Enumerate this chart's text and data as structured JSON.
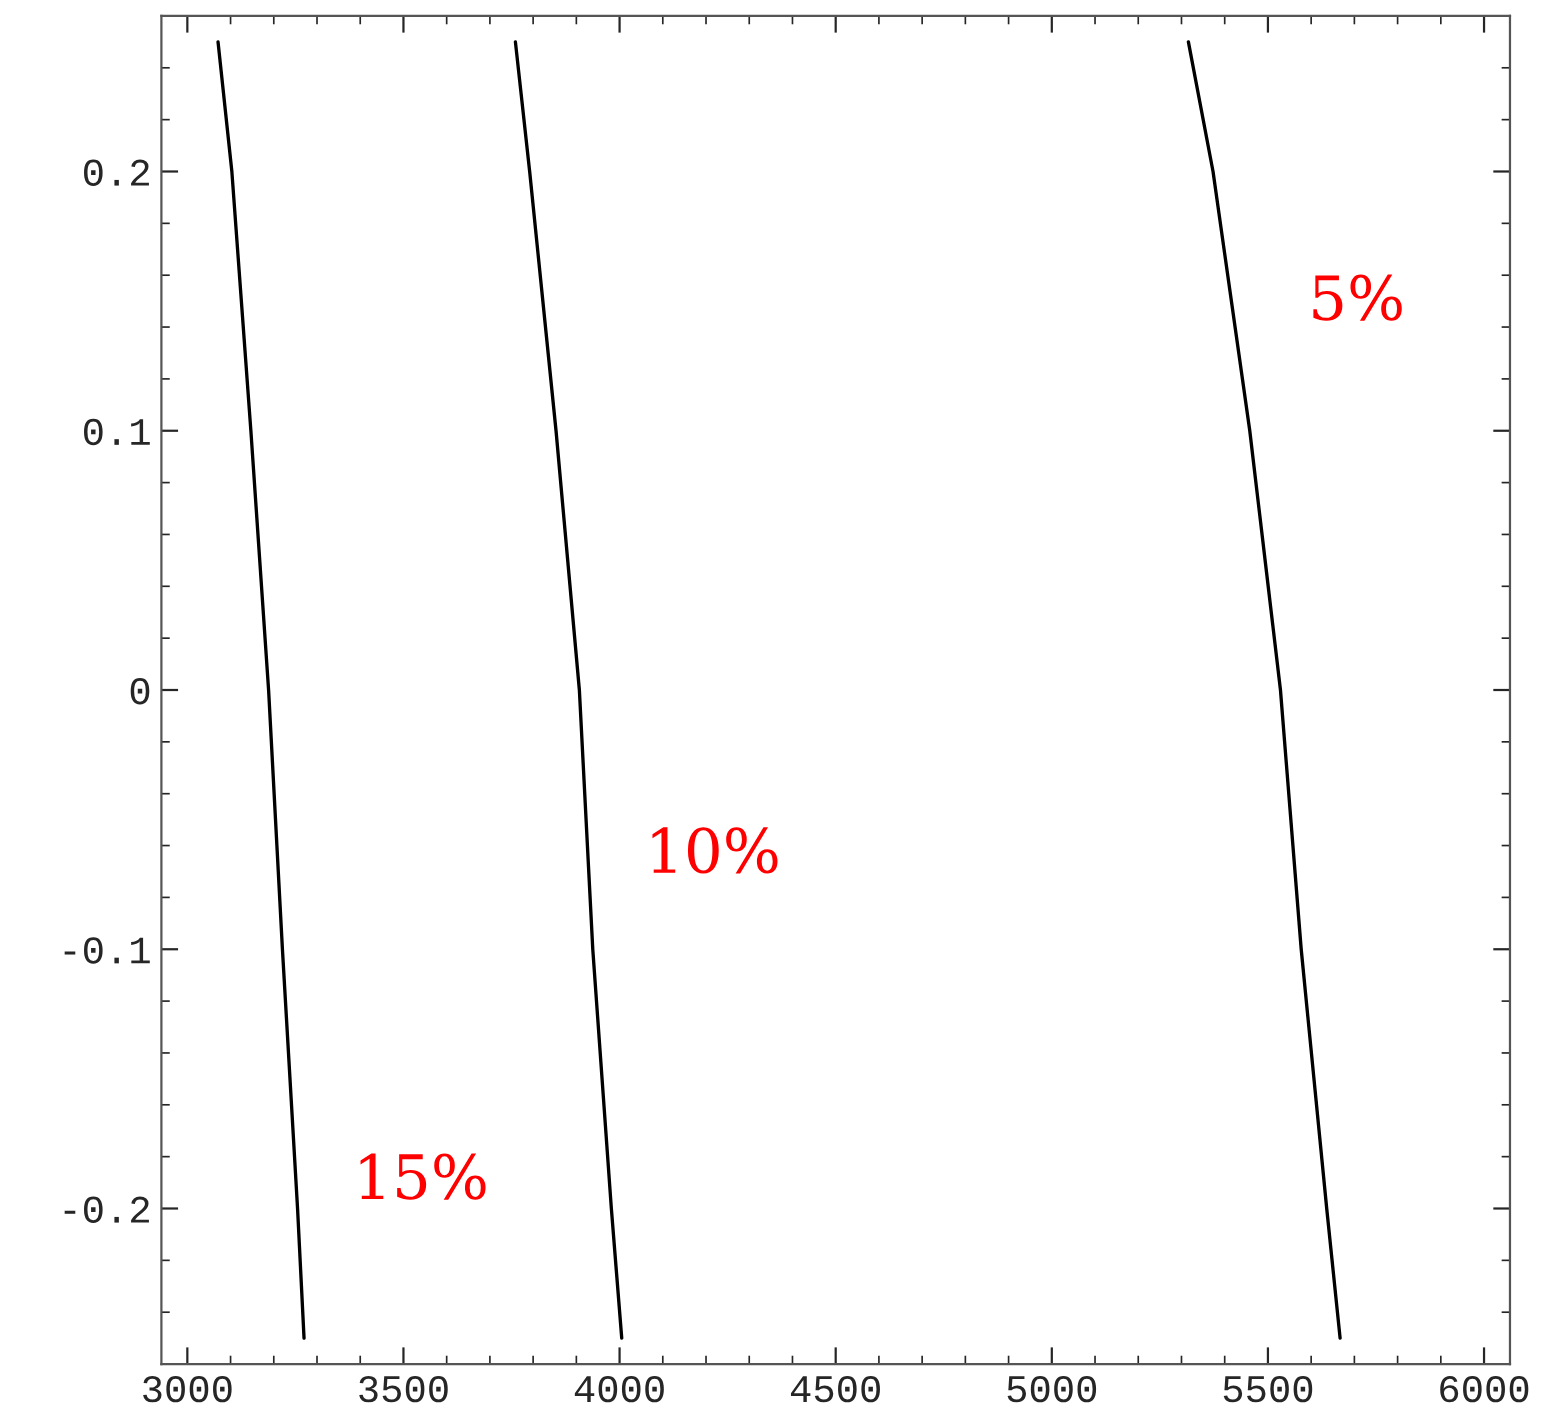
{
  "chart_data": {
    "type": "line",
    "series": [
      {
        "name": "15%",
        "color": "#000000",
        "x": [
          3071,
          3103,
          3147,
          3188,
          3220,
          3255,
          3270
        ],
        "values": [
          0.25,
          0.2,
          0.1,
          0,
          -0.1,
          -0.2,
          -0.25
        ]
      },
      {
        "name": "10%",
        "color": "#000000",
        "x": [
          3759,
          3792,
          3853,
          3907,
          3938,
          3981,
          4005
        ],
        "values": [
          0.25,
          0.2,
          0.1,
          0,
          -0.1,
          -0.2,
          -0.25
        ]
      },
      {
        "name": "5%",
        "color": "#000000",
        "x": [
          5316,
          5373,
          5458,
          5529,
          5577,
          5636,
          5667
        ],
        "values": [
          0.25,
          0.2,
          0.1,
          0,
          -0.1,
          -0.2,
          -0.25
        ]
      }
    ],
    "xlim": [
      2940,
      6060
    ],
    "ylim": [
      -0.26,
      0.26
    ],
    "xticks": [
      3000,
      3500,
      4000,
      4500,
      5000,
      5500,
      6000
    ],
    "yticks": [
      -0.2,
      -0.1,
      0,
      0.1,
      0.2
    ],
    "grid": false,
    "legend": false,
    "marker": "none",
    "line_style": "solid"
  }
}
